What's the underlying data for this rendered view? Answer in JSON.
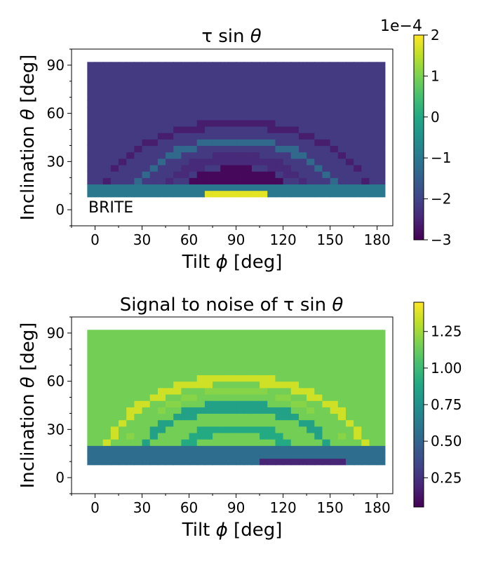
{
  "chart_data": [
    {
      "type": "heatmap",
      "title_main": "τ sin ",
      "title_theta": "θ",
      "xlabel_main": "Tilt ",
      "xlabel_sym": "ϕ",
      "xlabel_unit": " [deg]",
      "ylabel_main": "Inclination ",
      "ylabel_sym": "θ",
      "ylabel_unit": " [deg]",
      "annotation": "BRITE",
      "xlim": [
        -15,
        190
      ],
      "ylim": [
        -10,
        100
      ],
      "x_ticks": [
        0,
        30,
        60,
        90,
        120,
        150,
        180
      ],
      "y_ticks": [
        0,
        30,
        60,
        90
      ],
      "colorbar": {
        "colormap": "viridis",
        "range": [
          -3,
          2
        ],
        "ticks": [
          -3,
          -2,
          -1,
          0,
          1,
          2
        ],
        "tick_labels": [
          "−3",
          "−2",
          "−1",
          "0",
          "1",
          "2"
        ],
        "offset_label": "1e−4"
      },
      "x_range": [
        -5,
        185
      ],
      "y_range": [
        8,
        92
      ],
      "n_cols": 38,
      "n_rows": 21,
      "background_value": -2.15,
      "arcs": [
        {
          "center_x": 90,
          "radius_x": 87,
          "radius_y": 54,
          "width": 5,
          "value": -2.6
        },
        {
          "center_x": 90,
          "radius_x": 68,
          "radius_y": 43,
          "width": 5,
          "value": -1.3
        },
        {
          "center_x": 90,
          "radius_x": 52,
          "radius_y": 32,
          "width": 7,
          "value": -2.4
        },
        {
          "center_x": 90,
          "radius_x": 36,
          "radius_y": 22,
          "width": 10,
          "value": -2.9
        }
      ],
      "row_overrides": [
        {
          "y_min": 8,
          "y_max": 16,
          "value": -1.0
        },
        {
          "y_min": 8,
          "y_max": 12,
          "x_min": 70,
          "x_max": 110,
          "value": 1.8
        }
      ]
    },
    {
      "type": "heatmap",
      "title_main": "Signal to noise of τ sin ",
      "title_theta": "θ",
      "xlabel_main": "Tilt ",
      "xlabel_sym": "ϕ",
      "xlabel_unit": " [deg]",
      "ylabel_main": "Inclination ",
      "ylabel_sym": "θ",
      "ylabel_unit": " [deg]",
      "xlim": [
        -15,
        190
      ],
      "ylim": [
        -10,
        100
      ],
      "x_ticks": [
        0,
        30,
        60,
        90,
        120,
        150,
        180
      ],
      "y_ticks": [
        0,
        30,
        60,
        90
      ],
      "colorbar": {
        "colormap": "viridis",
        "range": [
          0.05,
          1.45
        ],
        "ticks": [
          0.25,
          0.5,
          0.75,
          1.0,
          1.25
        ],
        "tick_labels": [
          "0.25",
          "0.50",
          "0.75",
          "1.00",
          "1.25"
        ],
        "offset_label": ""
      },
      "x_range": [
        -5,
        185
      ],
      "y_range": [
        8,
        92
      ],
      "n_cols": 38,
      "n_rows": 21,
      "background_value": 1.15,
      "arcs": [
        {
          "center_x": 90,
          "radius_x": 87,
          "radius_y": 62,
          "width": 6,
          "value": 1.35
        },
        {
          "center_x": 90,
          "radius_x": 66,
          "radius_y": 45,
          "width": 6,
          "value": 0.85
        },
        {
          "center_x": 90,
          "radius_x": 46,
          "radius_y": 31,
          "width": 6,
          "value": 0.9
        },
        {
          "center_x": 90,
          "radius_x": 78,
          "radius_y": 54,
          "width": 3,
          "value": 1.2
        }
      ],
      "row_overrides": [
        {
          "y_min": 8,
          "y_max": 18,
          "value": 0.55
        },
        {
          "y_min": 8,
          "y_max": 12,
          "x_min": 105,
          "x_max": 160,
          "value": 0.2
        }
      ]
    }
  ]
}
